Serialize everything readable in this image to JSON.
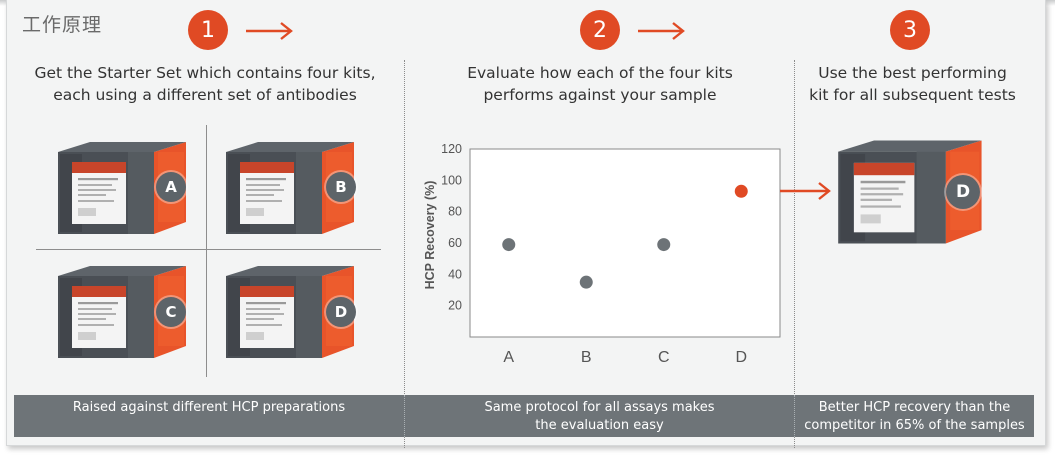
{
  "page": {
    "title": "工作原理"
  },
  "steps": [
    {
      "number": "1",
      "text_line1": "Get the Starter Set which contains four kits,",
      "text_line2": "each using a different set of antibodies"
    },
    {
      "number": "2",
      "text_line1": "Evaluate how each of the four kits",
      "text_line2": "performs against your sample"
    },
    {
      "number": "3",
      "text_line1": "Use the best performing",
      "text_line2": "kit for all subsequent tests"
    }
  ],
  "kits": [
    "A",
    "B",
    "C",
    "D"
  ],
  "selected_kit": "D",
  "footer": {
    "col1": "Raised against different HCP preparations",
    "col2_line1": "Same protocol for all assays makes",
    "col2_line2": "the evaluation easy",
    "col3_line1": "Better HCP recovery than the",
    "col3_line2": "competitor in 65% of the samples"
  },
  "colors": {
    "accent": "#e04a24",
    "point_gray": "#6d7377",
    "bar_gray": "#6e7478"
  },
  "chart_data": {
    "type": "scatter",
    "categories": [
      "A",
      "B",
      "C",
      "D"
    ],
    "values": [
      59,
      35,
      59,
      93
    ],
    "highlight": "D",
    "ylabel": "HCP Recovery (%)",
    "yticks": [
      20,
      40,
      60,
      80,
      100,
      120
    ],
    "ylim": [
      0,
      120
    ],
    "grid": "horizontal-dotted"
  }
}
